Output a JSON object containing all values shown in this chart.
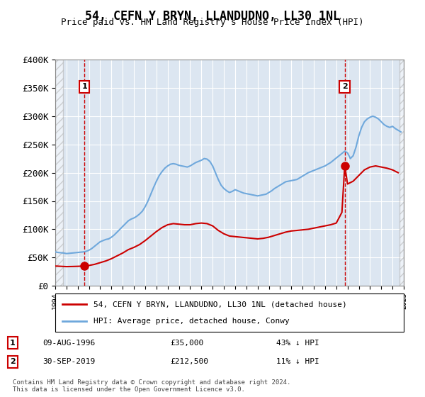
{
  "title": "54, CEFN Y BRYN, LLANDUDNO, LL30 1NL",
  "subtitle": "Price paid vs. HM Land Registry's House Price Index (HPI)",
  "xlabel": "",
  "ylabel": "",
  "ylim": [
    0,
    400000
  ],
  "yticks": [
    0,
    50000,
    100000,
    150000,
    200000,
    250000,
    300000,
    350000,
    400000
  ],
  "ytick_labels": [
    "£0",
    "£50K",
    "£100K",
    "£150K",
    "£200K",
    "£250K",
    "£300K",
    "£350K",
    "£400K"
  ],
  "x_start_year": 1994,
  "x_end_year": 2025,
  "sale1_year": 1996.6,
  "sale1_price": 35000,
  "sale1_label": "1",
  "sale1_date": "09-AUG-1996",
  "sale1_amount": "£35,000",
  "sale1_hpi": "43% ↓ HPI",
  "sale2_year": 2019.75,
  "sale2_price": 212500,
  "sale2_label": "2",
  "sale2_date": "30-SEP-2019",
  "sale2_amount": "£212,500",
  "sale2_hpi": "11% ↓ HPI",
  "hpi_color": "#6fa8dc",
  "price_color": "#cc0000",
  "vline_color": "#cc0000",
  "bg_color": "#dce6f1",
  "hatch_color": "#c0c0c0",
  "legend_line1": "54, CEFN Y BRYN, LLANDUDNO, LL30 1NL (detached house)",
  "legend_line2": "HPI: Average price, detached house, Conwy",
  "footer": "Contains HM Land Registry data © Crown copyright and database right 2024.\nThis data is licensed under the Open Government Licence v3.0.",
  "hpi_data": {
    "years": [
      1994,
      1994.25,
      1994.5,
      1994.75,
      1995,
      1995.25,
      1995.5,
      1995.75,
      1996,
      1996.25,
      1996.5,
      1996.75,
      1997,
      1997.25,
      1997.5,
      1997.75,
      1998,
      1998.25,
      1998.5,
      1998.75,
      1999,
      1999.25,
      1999.5,
      1999.75,
      2000,
      2000.25,
      2000.5,
      2000.75,
      2001,
      2001.25,
      2001.5,
      2001.75,
      2002,
      2002.25,
      2002.5,
      2002.75,
      2003,
      2003.25,
      2003.5,
      2003.75,
      2004,
      2004.25,
      2004.5,
      2004.75,
      2005,
      2005.25,
      2005.5,
      2005.75,
      2006,
      2006.25,
      2006.5,
      2006.75,
      2007,
      2007.25,
      2007.5,
      2007.75,
      2008,
      2008.25,
      2008.5,
      2008.75,
      2009,
      2009.25,
      2009.5,
      2009.75,
      2010,
      2010.25,
      2010.5,
      2010.75,
      2011,
      2011.25,
      2011.5,
      2011.75,
      2012,
      2012.25,
      2012.5,
      2012.75,
      2013,
      2013.25,
      2013.5,
      2013.75,
      2014,
      2014.25,
      2014.5,
      2014.75,
      2015,
      2015.25,
      2015.5,
      2015.75,
      2016,
      2016.25,
      2016.5,
      2016.75,
      2017,
      2017.25,
      2017.5,
      2017.75,
      2018,
      2018.25,
      2018.5,
      2018.75,
      2019,
      2019.25,
      2019.5,
      2019.75,
      2020,
      2020.25,
      2020.5,
      2020.75,
      2021,
      2021.25,
      2021.5,
      2021.75,
      2022,
      2022.25,
      2022.5,
      2022.75,
      2023,
      2023.25,
      2023.5,
      2023.75,
      2024,
      2024.25,
      2024.5,
      2024.75
    ],
    "values": [
      60000,
      59000,
      58500,
      58000,
      57000,
      57500,
      58000,
      58500,
      59000,
      59500,
      60000,
      61000,
      63000,
      66000,
      70000,
      74000,
      78000,
      80000,
      82000,
      83000,
      86000,
      90000,
      95000,
      100000,
      105000,
      110000,
      115000,
      118000,
      120000,
      123000,
      127000,
      132000,
      140000,
      150000,
      162000,
      174000,
      185000,
      195000,
      202000,
      208000,
      212000,
      215000,
      216000,
      215000,
      213000,
      212000,
      211000,
      210000,
      212000,
      215000,
      218000,
      220000,
      222000,
      225000,
      224000,
      220000,
      212000,
      200000,
      188000,
      178000,
      172000,
      168000,
      165000,
      167000,
      170000,
      168000,
      166000,
      164000,
      163000,
      162000,
      161000,
      160000,
      159000,
      160000,
      161000,
      162000,
      165000,
      168000,
      172000,
      175000,
      178000,
      181000,
      184000,
      185000,
      186000,
      187000,
      188000,
      191000,
      194000,
      197000,
      200000,
      202000,
      204000,
      206000,
      208000,
      210000,
      212000,
      215000,
      218000,
      222000,
      226000,
      230000,
      234000,
      238000,
      235000,
      225000,
      230000,
      245000,
      265000,
      280000,
      290000,
      295000,
      298000,
      300000,
      298000,
      295000,
      290000,
      285000,
      282000,
      280000,
      282000,
      278000,
      275000,
      272000
    ]
  },
  "price_data": {
    "years": [
      1994.0,
      1994.5,
      1995.0,
      1995.5,
      1996.0,
      1996.6,
      1997.0,
      1997.5,
      1998.0,
      1998.5,
      1999.0,
      1999.5,
      2000.0,
      2000.5,
      2001.0,
      2001.5,
      2002.0,
      2002.5,
      2003.0,
      2003.5,
      2004.0,
      2004.5,
      2005.0,
      2005.5,
      2006.0,
      2006.5,
      2007.0,
      2007.5,
      2008.0,
      2008.5,
      2009.0,
      2009.5,
      2010.0,
      2010.5,
      2011.0,
      2011.5,
      2012.0,
      2012.5,
      2013.0,
      2013.5,
      2014.0,
      2014.5,
      2015.0,
      2015.5,
      2016.0,
      2016.5,
      2017.0,
      2017.5,
      2018.0,
      2018.5,
      2019.0,
      2019.5,
      2019.75,
      2020.0,
      2020.5,
      2021.0,
      2021.5,
      2022.0,
      2022.5,
      2023.0,
      2023.5,
      2024.0,
      2024.5
    ],
    "values": [
      35000,
      34500,
      34000,
      34200,
      34500,
      35000,
      36000,
      38000,
      41000,
      44000,
      48000,
      53000,
      58000,
      64000,
      68000,
      73000,
      80000,
      88000,
      96000,
      103000,
      108000,
      110000,
      109000,
      108000,
      108000,
      110000,
      111000,
      110000,
      106000,
      98000,
      92000,
      88000,
      87000,
      86000,
      85000,
      84000,
      83000,
      84000,
      86000,
      89000,
      92000,
      95000,
      97000,
      98000,
      99000,
      100000,
      102000,
      104000,
      106000,
      108000,
      111000,
      130000,
      212500,
      180000,
      185000,
      195000,
      205000,
      210000,
      212000,
      210000,
      208000,
      205000,
      200000
    ]
  }
}
